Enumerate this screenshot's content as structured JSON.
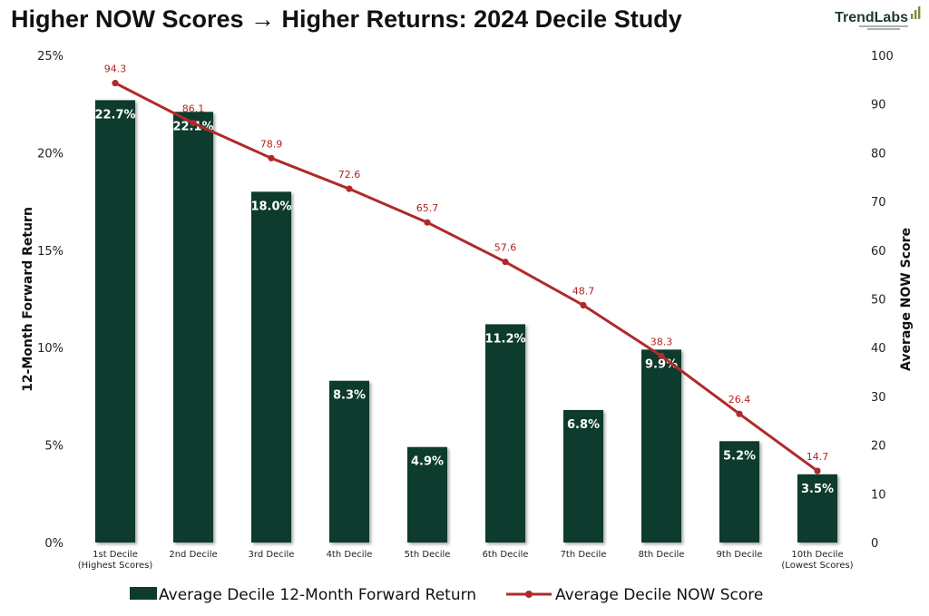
{
  "title": "Higher NOW Scores → Higher Returns: 2024 Decile Study",
  "brand": {
    "name": "TrendLabs"
  },
  "colors": {
    "bar": "#0f3b2e",
    "line": "#b02a2a",
    "text": "#111111"
  },
  "chart_data": {
    "type": "bar",
    "title": "Higher NOW Scores → Higher Returns: 2024 Decile Study",
    "categories": [
      [
        "1st Decile",
        "(Highest Scores)"
      ],
      [
        "2nd Decile"
      ],
      [
        "3rd Decile"
      ],
      [
        "4th Decile"
      ],
      [
        "5th Decile"
      ],
      [
        "6th Decile"
      ],
      [
        "7th Decile"
      ],
      [
        "8th Decile"
      ],
      [
        "9th Decile"
      ],
      [
        "10th Decile",
        "(Lowest Scores)"
      ]
    ],
    "ylabel_left": "12-Month Forward Return",
    "ylabel_right": "Average NOW Score",
    "ylim_left": [
      0,
      25
    ],
    "yticks_left": [
      "0%",
      "5%",
      "10%",
      "15%",
      "20%",
      "25%"
    ],
    "ylim_right": [
      0,
      100
    ],
    "yticks_right": [
      "0",
      "10",
      "20",
      "30",
      "40",
      "50",
      "60",
      "70",
      "80",
      "90",
      "100"
    ],
    "grid": false,
    "legend_position": "bottom",
    "series": [
      {
        "name": "Average Decile 12-Month Forward Return",
        "type": "bar",
        "axis": "left",
        "values": [
          22.7,
          22.1,
          18.0,
          8.3,
          4.9,
          11.2,
          6.8,
          9.9,
          5.2,
          3.5
        ],
        "labels": [
          "22.7%",
          "22.1%",
          "18.0%",
          "8.3%",
          "4.9%",
          "11.2%",
          "6.8%",
          "9.9%",
          "5.2%",
          "3.5%"
        ]
      },
      {
        "name": "Average Decile NOW Score",
        "type": "line",
        "axis": "right",
        "values": [
          94.3,
          86.1,
          78.9,
          72.6,
          65.7,
          57.6,
          48.7,
          38.3,
          26.4,
          14.7
        ],
        "labels": [
          "94.3",
          "86.1",
          "78.9",
          "72.6",
          "65.7",
          "57.6",
          "48.7",
          "38.3",
          "26.4",
          "14.7"
        ]
      }
    ]
  }
}
